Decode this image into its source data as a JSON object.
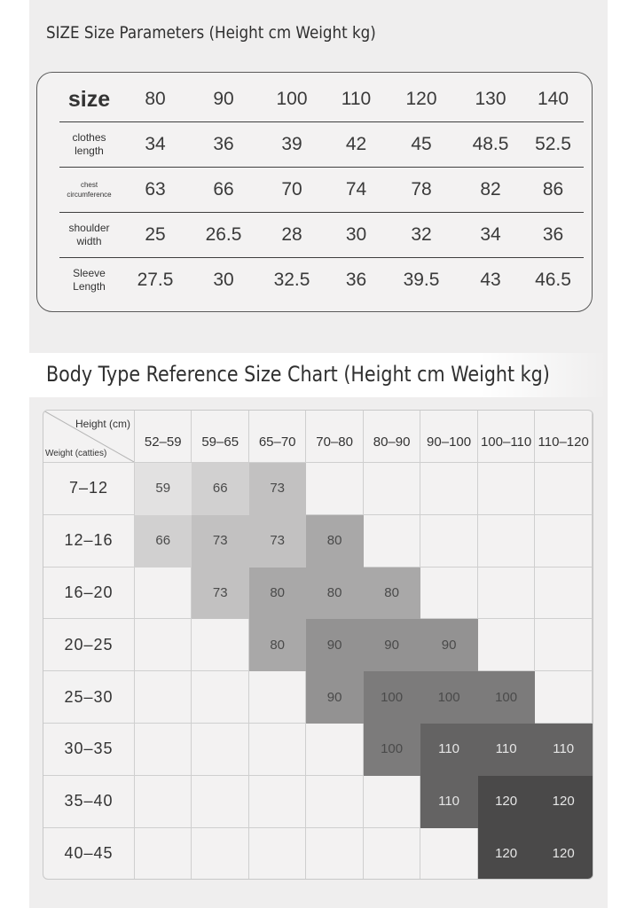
{
  "size_section": {
    "title": "SIZE Size Parameters (Height cm Weight kg)",
    "rows": [
      {
        "label": "size",
        "style": "big",
        "values": [
          "80",
          "90",
          "100",
          "110",
          "120",
          "130",
          "140"
        ]
      },
      {
        "label": "clothes length",
        "style": "small",
        "values": [
          "34",
          "36",
          "39",
          "42",
          "45",
          "48.5",
          "52.5"
        ]
      },
      {
        "label": "chest circumference",
        "style": "tiny",
        "values": [
          "63",
          "66",
          "70",
          "74",
          "78",
          "82",
          "86"
        ]
      },
      {
        "label": "shoulder width",
        "style": "small",
        "values": [
          "25",
          "26.5",
          "28",
          "30",
          "32",
          "34",
          "36"
        ]
      },
      {
        "label": "Sleeve Length",
        "style": "small",
        "values": [
          "27.5",
          "30",
          "32.5",
          "36",
          "39.5",
          "43",
          "46.5"
        ]
      }
    ]
  },
  "chart_section": {
    "title": "Body Type Reference Size Chart (Height cm Weight kg)",
    "corner_height_label": "Height (cm)",
    "corner_weight_label": "Weight (catties)",
    "height_ranges": [
      "52–59",
      "59–65",
      "65–70",
      "70–80",
      "80–90",
      "90–100",
      "100–110",
      "110–120"
    ],
    "rows": [
      {
        "weight": "7–12",
        "cells": [
          "59",
          "66",
          "73",
          "",
          "",
          "",
          "",
          ""
        ]
      },
      {
        "weight": "12–16",
        "cells": [
          "66",
          "73",
          "73",
          "80",
          "",
          "",
          "",
          ""
        ]
      },
      {
        "weight": "16–20",
        "cells": [
          "",
          "73",
          "80",
          "80",
          "80",
          "",
          "",
          ""
        ]
      },
      {
        "weight": "20–25",
        "cells": [
          "",
          "",
          "80",
          "90",
          "90",
          "90",
          "",
          ""
        ]
      },
      {
        "weight": "25–30",
        "cells": [
          "",
          "",
          "",
          "90",
          "100",
          "100",
          "100",
          ""
        ]
      },
      {
        "weight": "30–35",
        "cells": [
          "",
          "",
          "",
          "",
          "100",
          "110",
          "110",
          "110"
        ]
      },
      {
        "weight": "35–40",
        "cells": [
          "",
          "",
          "",
          "",
          "",
          "110",
          "120",
          "120"
        ]
      },
      {
        "weight": "40–45",
        "cells": [
          "",
          "",
          "",
          "",
          "",
          "",
          "120",
          "120"
        ]
      }
    ],
    "size_colors": {
      "59": "#e2e1e1",
      "66": "#d1d0d0",
      "73": "#c2c1c1",
      "80": "#a9a8a8",
      "90": "#939292",
      "100": "#7c7b7b",
      "110": "#646363",
      "120": "#4a4949"
    },
    "dark_text_sizes": [
      "59",
      "66",
      "73",
      "80",
      "90",
      "100"
    ],
    "light_text_color": "#e6e6e6"
  }
}
